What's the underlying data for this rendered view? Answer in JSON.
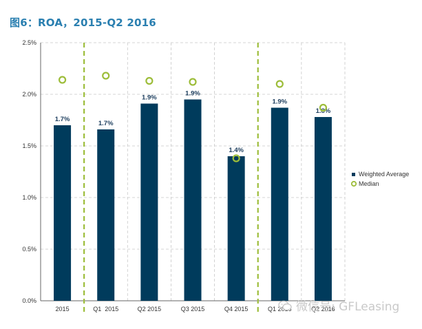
{
  "chart_data": {
    "type": "bar",
    "title": "图6：ROA，2015-Q2 2016",
    "categories": [
      "2015",
      "Q1  2015",
      "Q2 2015",
      "Q3 2015",
      "Q4 2015",
      "Q1 2016",
      "Q2 2016"
    ],
    "series": [
      {
        "name": "Weighted Average",
        "kind": "bar",
        "values": [
          1.7,
          1.66,
          1.91,
          1.95,
          1.4,
          1.87,
          1.78
        ],
        "labels": [
          "1.7%",
          "1.7%",
          "1.9%",
          "1.9%",
          "1.4%",
          "1.9%",
          "1.8%"
        ]
      },
      {
        "name": "Median",
        "kind": "marker",
        "values": [
          2.14,
          2.18,
          2.13,
          2.12,
          1.38,
          2.1,
          1.87
        ]
      }
    ],
    "y_ticks": [
      "0.0%",
      "0.5%",
      "1.0%",
      "1.5%",
      "2.0%",
      "2.5%"
    ],
    "ylim": [
      0,
      2.5
    ],
    "grid": true,
    "separators_after_category_index": [
      0,
      4
    ],
    "legend_position": "right",
    "colors": {
      "bar": "#003b5c",
      "marker": "#9dbd3a",
      "separator": "#9dbd3a",
      "grid": "#c8c8c8",
      "title": "#2a7fb0"
    }
  },
  "watermark": {
    "text": "微信号: GFLeasing",
    "icon": "wechat-icon"
  }
}
